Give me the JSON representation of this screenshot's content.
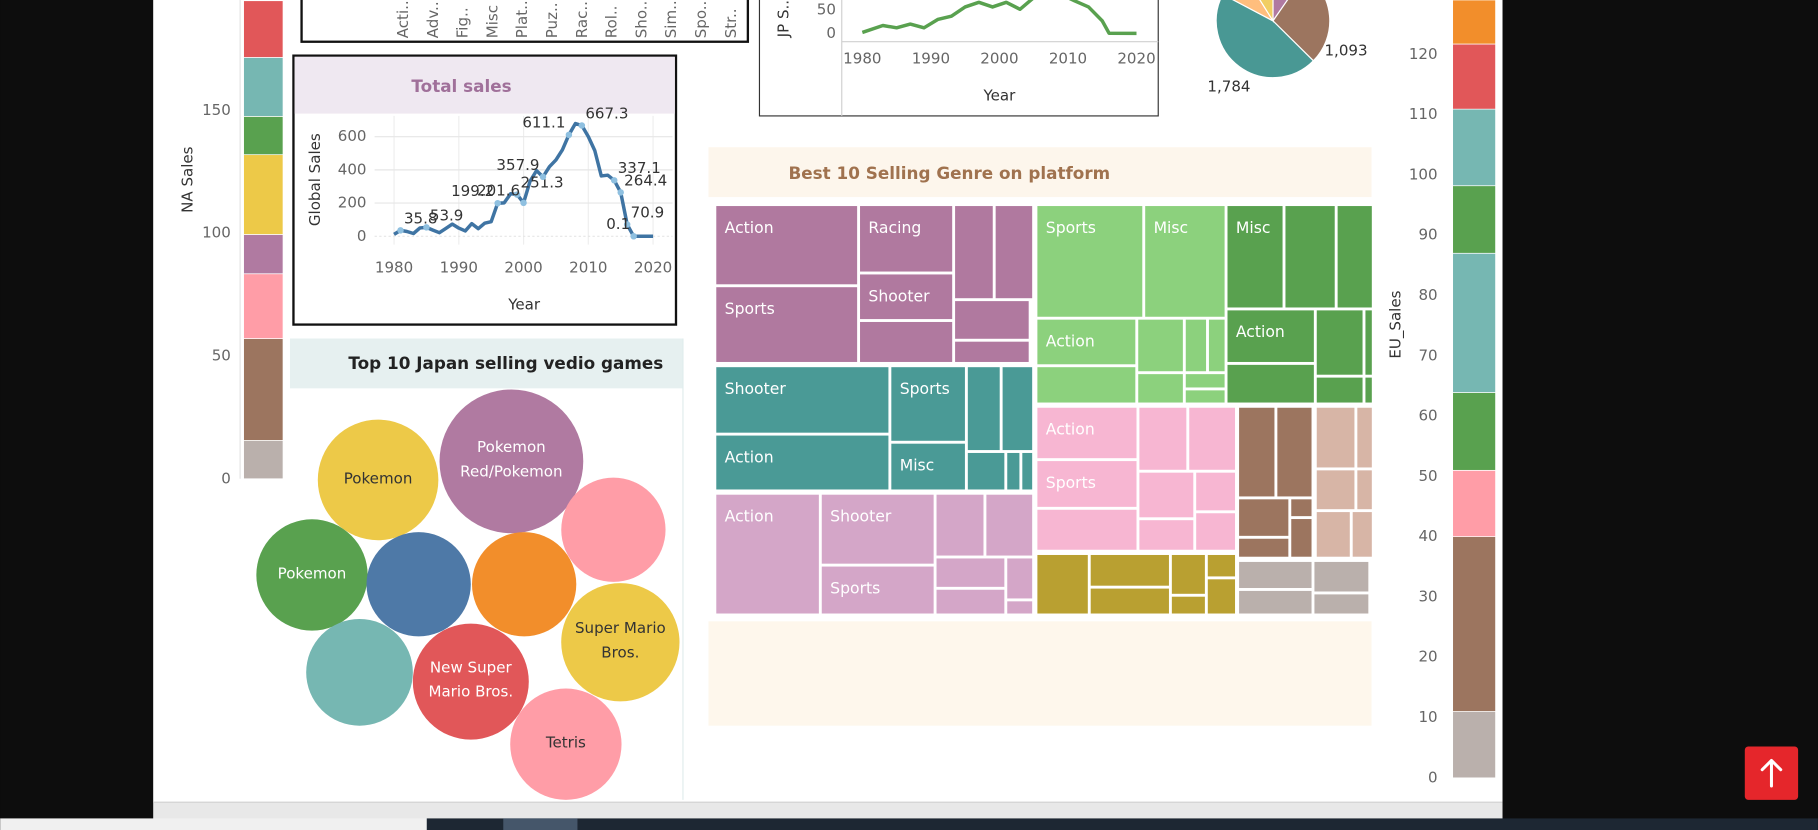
{
  "chart_data": [
    {
      "type": "bar",
      "stacked": true,
      "y_label": "NA Sales",
      "categories": [
        null
      ],
      "ylim": [
        0,
        195
      ],
      "yticks": [
        0,
        50,
        100,
        150
      ],
      "series": [
        {
          "color": "#bab0ac",
          "values": [
            15.6
          ]
        },
        {
          "color": "#9c755f",
          "values": [
            41.5
          ]
        },
        {
          "color": "#ff9da7",
          "values": [
            26.4
          ]
        },
        {
          "color": "#b07aa1",
          "values": [
            16
          ]
        },
        {
          "color": "#edc948",
          "values": [
            32.5
          ]
        },
        {
          "color": "#59a14f",
          "values": [
            15.6
          ]
        },
        {
          "color": "#76b7b2",
          "values": [
            24
          ]
        },
        {
          "color": "#e15759",
          "values": [
            23.1
          ]
        }
      ]
    },
    {
      "type": "bar",
      "categories": [
        "Acti..",
        "Adv..",
        "Fig..",
        "Misc",
        "Plat..",
        "Puz..",
        "Rac..",
        "Rol..",
        "Sho..",
        "Sim..",
        "Spo..",
        "Str.."
      ]
    },
    {
      "type": "line",
      "y_label": "JP S...",
      "x_label": "Year",
      "xlim": [
        1977,
        2023
      ],
      "ylim": [
        -18,
        72
      ],
      "xticks": [
        1980,
        1990,
        2000,
        2010,
        2020
      ],
      "yticks": [
        0,
        50
      ],
      "x": [
        1980,
        1983,
        1985,
        1987,
        1989,
        1991,
        1993,
        1995,
        1997,
        1999,
        2001,
        2003,
        2005,
        2010,
        2011,
        2013,
        2015,
        2016,
        2020
      ],
      "series": [
        {
          "color": "#59a14f",
          "values": [
            2,
            17,
            12,
            20,
            12,
            30,
            37,
            57,
            67,
            57,
            67,
            52,
            77,
            77,
            70,
            57,
            27,
            0.3,
            0
          ]
        }
      ]
    },
    {
      "type": "pie",
      "values": [
        380,
        1093,
        1784,
        330,
        350
      ],
      "value_labels": [
        null,
        "1,093",
        "1,784",
        null,
        null
      ],
      "colors": [
        "#b07aa1",
        "#9c755f",
        "#499894",
        "#ffbe7d",
        "#f1ce63"
      ]
    },
    {
      "type": "line",
      "title": "Total sales",
      "y_label": "Global Sales",
      "x_label": "Year",
      "xlim": [
        1977,
        2023
      ],
      "ylim": [
        -50,
        725
      ],
      "xticks": [
        1980,
        1990,
        2000,
        2010,
        2020
      ],
      "yticks": [
        0,
        200,
        400,
        600
      ],
      "grid": true,
      "x": [
        1980,
        1981,
        1982,
        1983,
        1984,
        1985,
        1986,
        1987,
        1988,
        1989,
        1990,
        1991,
        1992,
        1993,
        1994,
        1995,
        1996,
        1997,
        1998,
        1999,
        2000,
        2001,
        2002,
        2003,
        2004,
        2005,
        2006,
        2007,
        2008,
        2009,
        2010,
        2011,
        2012,
        2013,
        2014,
        2015,
        2016,
        2017,
        2020
      ],
      "series": [
        {
          "color": "#3f74a3",
          "values": [
            11.4,
            35.8,
            28.9,
            16.8,
            50.4,
            53.9,
            37.1,
            21.7,
            47.2,
            73.5,
            49.4,
            32.2,
            76.2,
            46.0,
            79.2,
            88.1,
            199.2,
            201.0,
            256.5,
            251.3,
            201.6,
            331.5,
            395.5,
            357.9,
            419.3,
            459.9,
            521.0,
            611.1,
            678.9,
            667.3,
            600.5,
            516.0,
            363.5,
            368.1,
            337.1,
            264.4,
            70.9,
            0.1,
            0.3
          ],
          "value_labels": [
            null,
            "35.8",
            null,
            null,
            null,
            "53.9",
            null,
            null,
            null,
            null,
            null,
            null,
            null,
            null,
            null,
            null,
            "199.2",
            null,
            null,
            "251.3",
            "201.6",
            null,
            null,
            "357.9",
            null,
            null,
            null,
            "611.1",
            null,
            "667.3",
            null,
            null,
            null,
            null,
            "337.1",
            "264.4",
            "70.9",
            "0.1",
            null
          ]
        }
      ]
    },
    {
      "type": "bubble",
      "title": "Top 10 Japan selling vedio games",
      "labels": [
        "Pokemon Red/Pokemon",
        "Pokemon",
        null,
        "Pokemon",
        null,
        null,
        "Super Mario Bros.",
        null,
        "New Super Mario Bros.",
        "Tetris"
      ],
      "values": [
        10.22,
        7.19,
        5.38,
        6.13,
        5.38,
        5.38,
        6.92,
        5.63,
        6.65,
        6.13
      ],
      "colors": [
        "#b07aa1",
        "#edc948",
        "#ff9da7",
        "#59a14f",
        "#4e79a7",
        "#f28e2b",
        "#edc948",
        "#76b7b2",
        "#e15759",
        "#ff9da7"
      ]
    },
    {
      "type": "treemap",
      "title": "Best 10 Selling Genre on platform",
      "groups": [
        {
          "color": "#b0799f",
          "labels": [
            "Action",
            "Sports",
            "Racing",
            "Shooter",
            null,
            null,
            null,
            null,
            null
          ],
          "values": [
            85,
            81,
            47,
            32,
            29,
            28,
            27,
            22,
            12
          ]
        },
        {
          "color": "#4a9a96",
          "labels": [
            "Shooter",
            "Action",
            "Sports",
            "Misc",
            null,
            null,
            null,
            null,
            null
          ],
          "values": [
            87,
            72,
            42,
            27,
            21,
            20,
            11,
            4,
            3
          ]
        },
        {
          "color": "#d4a6c8",
          "labels": [
            "Action",
            "Shooter",
            "Sports",
            null,
            null,
            null,
            null,
            null,
            null
          ],
          "values": [
            94,
            60,
            41,
            23,
            22,
            16,
            13,
            8,
            3
          ]
        },
        {
          "color": "#8cd17d",
          "labels": [
            "Sports",
            "Misc",
            "Action",
            null,
            null,
            null,
            null,
            null,
            null,
            null
          ],
          "values": [
            89,
            68,
            34,
            28,
            18,
            9,
            7,
            10,
            5,
            4
          ]
        },
        {
          "color": "#59a14f",
          "labels": [
            "Misc",
            null,
            null,
            "Action",
            null,
            null,
            null,
            null,
            null
          ],
          "values": [
            44,
            39,
            28,
            35,
            26,
            23,
            4,
            9,
            2
          ]
        },
        {
          "color": "#f7b6d2",
          "labels": [
            "Action",
            "Sports",
            null,
            null,
            null,
            null,
            null,
            null,
            null
          ],
          "values": [
            39,
            36,
            31,
            23,
            23,
            19,
            12,
            13,
            12
          ]
        },
        {
          "color": "#9c755f",
          "labels": [
            null,
            null,
            null,
            null,
            null,
            null
          ],
          "values": [
            25,
            24,
            15,
            7,
            3,
            6
          ]
        },
        {
          "color": "#d7b5a6",
          "labels": [
            null,
            null,
            null,
            null,
            null,
            null
          ],
          "values": [
            18,
            7,
            12,
            5,
            12,
            7
          ]
        },
        {
          "color": "#b9a031",
          "labels": [
            null,
            null,
            null,
            null,
            null,
            null,
            null
          ],
          "values": [
            23,
            19,
            16,
            11,
            5,
            5,
            8
          ]
        },
        {
          "color": "#bab0ac",
          "labels": [
            null,
            null,
            null,
            null
          ],
          "values": [
            15,
            13,
            13,
            9
          ]
        }
      ]
    },
    {
      "type": "bar",
      "stacked": true,
      "y_label": "EU_Sales",
      "categories": [
        null
      ],
      "ylim": [
        0,
        129
      ],
      "yticks": [
        0,
        10,
        20,
        30,
        40,
        50,
        60,
        70,
        80,
        90,
        100,
        110,
        120
      ],
      "series": [
        {
          "color": "#bab0ac",
          "values": [
            11
          ]
        },
        {
          "color": "#9c755f",
          "values": [
            29
          ]
        },
        {
          "color": "#ff9da7",
          "values": [
            11
          ]
        },
        {
          "color": "#59a14f",
          "values": [
            12.9
          ]
        },
        {
          "color": "#76b7b2",
          "values": [
            23.1
          ]
        },
        {
          "color": "#59a14f",
          "values": [
            11.2
          ]
        },
        {
          "color": "#76b7b2",
          "values": [
            12.7
          ]
        },
        {
          "color": "#e15759",
          "values": [
            10.8
          ]
        },
        {
          "color": "#f28e2b",
          "values": [
            7.3
          ]
        }
      ]
    }
  ]
}
